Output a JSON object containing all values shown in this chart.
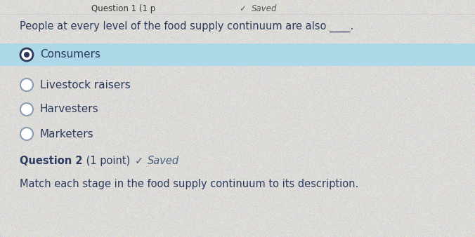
{
  "bg_color": "#dcdbd8",
  "question_text": "People at every level of the food supply continuum are also ____.",
  "options": [
    "Consumers",
    "Livestock raisers",
    "Harvesters",
    "Marketers"
  ],
  "selected_index": 0,
  "selected_bg": "#add8e8",
  "text_color": "#2b3a5c",
  "radio_outline_color": "#8a9ab0",
  "radio_fill_color": "#2b3a5c",
  "q2_bold_text": "Question 2",
  "q2_normal_text": " (1 point)",
  "q2_saved_text": "Saved",
  "q2_saved_color": "#4a6080",
  "q2_desc": "Match each stage in the food supply continuum to its description.",
  "font_size_question": 10.5,
  "font_size_option": 11.0,
  "font_size_q2": 10.5,
  "font_size_desc": 10.5,
  "header_text_partial": "Question 1 (1 p",
  "header_saved": "Saved"
}
